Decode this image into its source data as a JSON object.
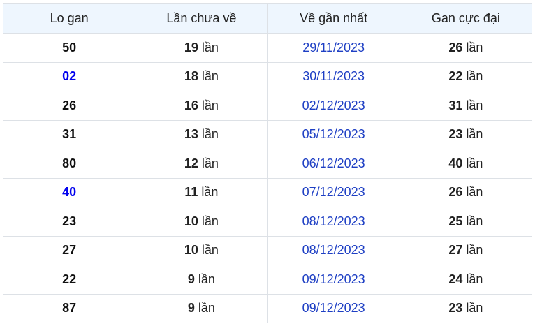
{
  "headers": [
    "Lo gan",
    "Lần chưa về",
    "Về gần nhất",
    "Gan cực đại"
  ],
  "unit": "lần",
  "colors": {
    "highlight_number": "#0000ee",
    "date": "#1e3fc4",
    "header_bg": "#eef6fe"
  },
  "rows": [
    {
      "number": "50",
      "highlight": false,
      "absent": "19",
      "last_seen": "29/11/2023",
      "max_gap": "26"
    },
    {
      "number": "02",
      "highlight": true,
      "absent": "18",
      "last_seen": "30/11/2023",
      "max_gap": "22"
    },
    {
      "number": "26",
      "highlight": false,
      "absent": "16",
      "last_seen": "02/12/2023",
      "max_gap": "31"
    },
    {
      "number": "31",
      "highlight": false,
      "absent": "13",
      "last_seen": "05/12/2023",
      "max_gap": "23"
    },
    {
      "number": "80",
      "highlight": false,
      "absent": "12",
      "last_seen": "06/12/2023",
      "max_gap": "40"
    },
    {
      "number": "40",
      "highlight": true,
      "absent": "11",
      "last_seen": "07/12/2023",
      "max_gap": "26"
    },
    {
      "number": "23",
      "highlight": false,
      "absent": "10",
      "last_seen": "08/12/2023",
      "max_gap": "25"
    },
    {
      "number": "27",
      "highlight": false,
      "absent": "10",
      "last_seen": "08/12/2023",
      "max_gap": "27"
    },
    {
      "number": "22",
      "highlight": false,
      "absent": "9",
      "last_seen": "09/12/2023",
      "max_gap": "24"
    },
    {
      "number": "87",
      "highlight": false,
      "absent": "9",
      "last_seen": "09/12/2023",
      "max_gap": "23"
    }
  ]
}
